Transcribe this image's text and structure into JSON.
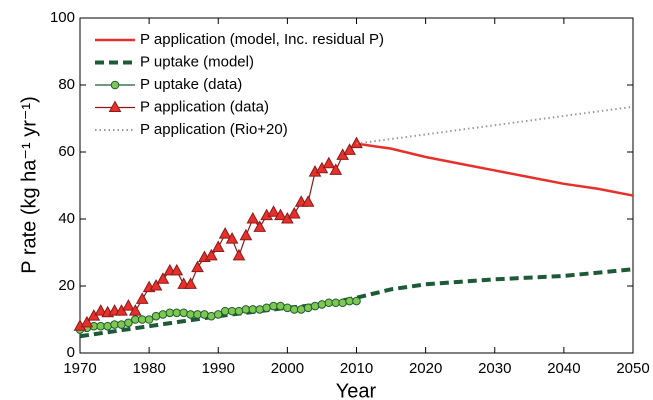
{
  "chart_data": {
    "type": "line",
    "xlabel": "Year",
    "ylabel": "P rate (kg ha⁻¹ yr⁻¹)",
    "xlim": [
      1970,
      2050
    ],
    "ylim": [
      0,
      100
    ],
    "xticks": [
      1970,
      1980,
      1990,
      2000,
      2010,
      2020,
      2030,
      2040,
      2050
    ],
    "yticks": [
      0,
      20,
      40,
      60,
      80,
      100
    ],
    "legend": "upper left",
    "series": [
      {
        "name": "P application (model, Inc. residual P)",
        "color": "#e8302a",
        "style": "solid",
        "marker": "none",
        "x": [
          2010,
          2015,
          2020,
          2025,
          2030,
          2035,
          2040,
          2045,
          2050
        ],
        "values": [
          62.5,
          61,
          58.5,
          56.5,
          54.5,
          52.5,
          50.5,
          49,
          47
        ]
      },
      {
        "name": "P uptake (model)",
        "color": "#1f5a36",
        "style": "dashed",
        "marker": "none",
        "x": [
          1970,
          1980,
          1990,
          2000,
          2005,
          2010,
          2015,
          2020,
          2030,
          2040,
          2050
        ],
        "values": [
          5,
          8,
          11,
          13.5,
          14.5,
          16.5,
          19,
          20.5,
          22,
          23,
          25
        ]
      },
      {
        "name": "P uptake (data)",
        "color": "#1f5a36",
        "fill": "#7ec850",
        "style": "solid",
        "marker": "circle",
        "x": [
          1970,
          1971,
          1972,
          1973,
          1974,
          1975,
          1976,
          1977,
          1978,
          1979,
          1980,
          1981,
          1982,
          1983,
          1984,
          1985,
          1986,
          1987,
          1988,
          1989,
          1990,
          1991,
          1992,
          1993,
          1994,
          1995,
          1996,
          1997,
          1998,
          1999,
          2000,
          2001,
          2002,
          2003,
          2004,
          2005,
          2006,
          2007,
          2008,
          2009,
          2010
        ],
        "values": [
          7,
          7.5,
          8,
          8,
          8,
          8.5,
          8.5,
          9,
          10,
          10,
          10,
          11,
          11.5,
          12,
          12,
          12,
          11.5,
          11.5,
          11.5,
          11,
          11.5,
          12.5,
          12.5,
          12.5,
          13,
          13,
          13,
          13.5,
          14,
          14,
          13.5,
          13,
          13,
          13.5,
          14,
          14.5,
          15,
          15,
          15,
          15.5,
          15.5
        ]
      },
      {
        "name": "P application (data)",
        "color": "#8b1a1a",
        "fill": "#e8302a",
        "style": "solid",
        "marker": "triangle",
        "x": [
          1970,
          1971,
          1972,
          1973,
          1974,
          1975,
          1976,
          1977,
          1978,
          1979,
          1980,
          1981,
          1982,
          1983,
          1984,
          1985,
          1986,
          1987,
          1988,
          1989,
          1990,
          1991,
          1992,
          1993,
          1994,
          1995,
          1996,
          1997,
          1998,
          1999,
          2000,
          2001,
          2002,
          2003,
          2004,
          2005,
          2006,
          2007,
          2008,
          2009,
          2010
        ],
        "values": [
          8,
          9,
          11,
          12.5,
          12,
          12.5,
          12.5,
          14,
          12.5,
          16,
          19.5,
          20,
          22,
          24.5,
          24.5,
          20.5,
          20.5,
          25.5,
          28.5,
          29,
          31.5,
          35.5,
          34,
          29,
          35,
          40,
          37.5,
          41,
          42,
          41,
          40,
          41.5,
          45,
          45,
          54,
          55,
          56.5,
          54.5,
          59,
          60.5,
          62.5
        ]
      },
      {
        "name": "P application (Rio+20)",
        "color": "#9a9a9a",
        "style": "dotted",
        "marker": "none",
        "x": [
          2010,
          2030,
          2050
        ],
        "values": [
          62.5,
          68,
          73.5
        ]
      }
    ]
  }
}
